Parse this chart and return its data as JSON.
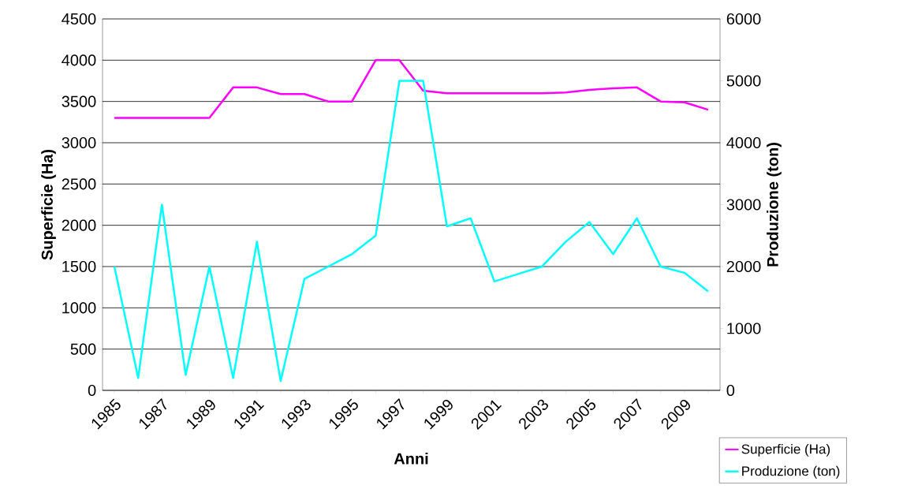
{
  "chart_data": {
    "type": "line",
    "xlabel": "Anni",
    "ylabel": "Superficie (Ha)",
    "y2label": "Produzione (ton)",
    "categories": [
      "1985",
      null,
      "1987",
      null,
      "1989",
      null,
      "1991",
      null,
      "1993",
      null,
      "1995",
      null,
      "1997",
      null,
      "1999",
      null,
      "2001",
      null,
      "2003",
      null,
      "2005",
      null,
      "2007",
      null,
      "2009",
      null
    ],
    "series": [
      {
        "name": "Superficie (Ha)",
        "color": "#ff00ff",
        "values": [
          3300,
          3300,
          3300,
          3300,
          3300,
          3670,
          3670,
          3590,
          3590,
          3500,
          3500,
          4000,
          4000,
          3630,
          3600,
          3600,
          3600,
          3600,
          3600,
          3610,
          3640,
          3660,
          3670,
          3500,
          3490,
          3400
        ]
      },
      {
        "name": "Produzione (ton)",
        "color": "#00ffff",
        "axis": "y2",
        "values": [
          2000,
          200,
          3000,
          250,
          2000,
          200,
          2400,
          150,
          1800,
          2000,
          2200,
          2500,
          5000,
          5000,
          2650,
          2780,
          1760,
          1880,
          2000,
          2400,
          2720,
          2200,
          2780,
          2000,
          1900,
          1600
        ]
      }
    ],
    "ylim": [
      0,
      4500
    ],
    "yticks": [
      0,
      500,
      1000,
      1500,
      2000,
      2500,
      3000,
      3500,
      4000,
      4500
    ],
    "y2lim": [
      0,
      6000
    ],
    "y2ticks": [
      0,
      1000,
      2000,
      3000,
      4000,
      5000,
      6000
    ],
    "grid": "y",
    "legend": "bottom right",
    "marker": "none",
    "line_style": "solid"
  }
}
